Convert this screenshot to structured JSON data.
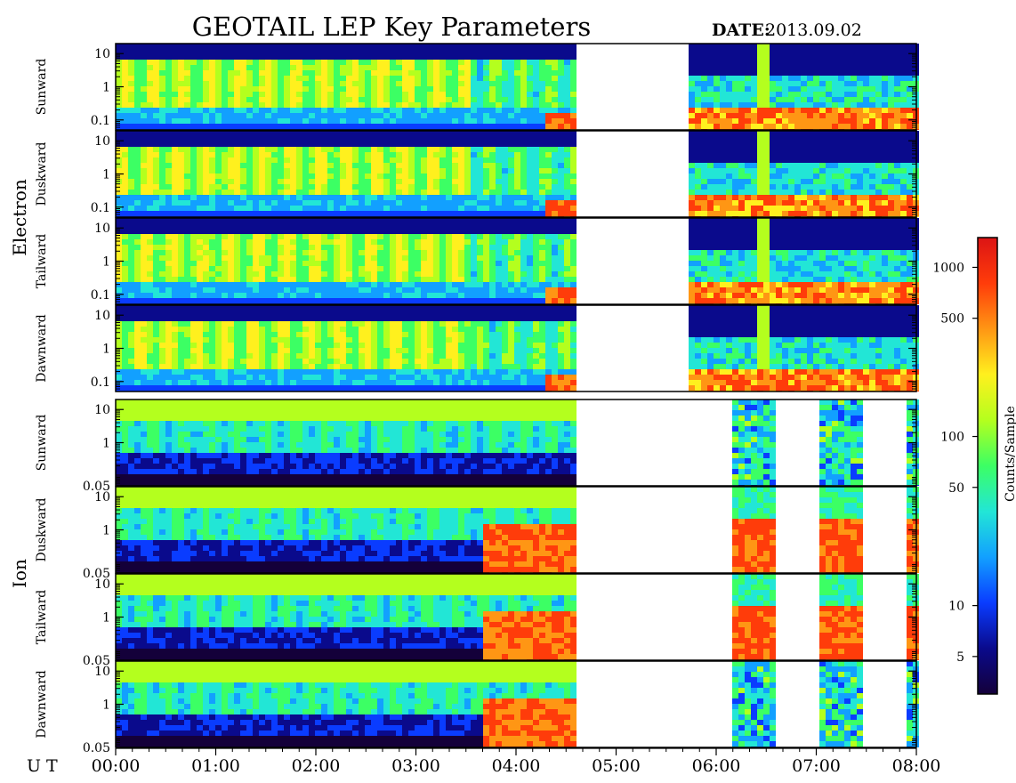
{
  "title": "GEOTAIL LEP Key Parameters",
  "date_label": "DATE:",
  "date_value": "2013.09.02",
  "ut_label": "U T",
  "colorbar": {
    "label": "Counts/Sample",
    "ticks": [
      "1000",
      "500",
      "100",
      "50",
      "10",
      "5"
    ],
    "tick_values": [
      1000,
      500,
      100,
      50,
      10,
      5
    ],
    "range": [
      3,
      1500
    ],
    "scale": "log",
    "colormap": [
      "#14003a",
      "#0a0a8c",
      "#0a3cff",
      "#12a0ff",
      "#22e6d6",
      "#3cff64",
      "#b4ff1e",
      "#fff01e",
      "#ff9614",
      "#ff3c0a",
      "#dc1414"
    ]
  },
  "chart_data": {
    "type": "heatmap",
    "x_range": [
      "00:00",
      "08:00"
    ],
    "x_ticks": [
      "00:00",
      "01:00",
      "02:00",
      "03:00",
      "04:00",
      "05:00",
      "06:00",
      "07:00",
      "08:00"
    ],
    "y_scale": "log",
    "data_gaps": [
      [
        "04:34",
        "05:40"
      ]
    ],
    "groups": [
      {
        "name": "Electron",
        "y_range": [
          0.05,
          20
        ],
        "y_ticks": [
          "10",
          "1",
          "0.1"
        ],
        "panels": [
          {
            "name": "Sunward"
          },
          {
            "name": "Duskward"
          },
          {
            "name": "Tailward"
          },
          {
            "name": "Dawnward"
          }
        ]
      },
      {
        "name": "Ion",
        "y_range": [
          0.05,
          20
        ],
        "y_ticks": [
          "10",
          "1",
          "0.05"
        ],
        "panels": [
          {
            "name": "Sunward"
          },
          {
            "name": "Duskward"
          },
          {
            "name": "Tailward"
          },
          {
            "name": "Dawnward"
          }
        ]
      }
    ]
  }
}
